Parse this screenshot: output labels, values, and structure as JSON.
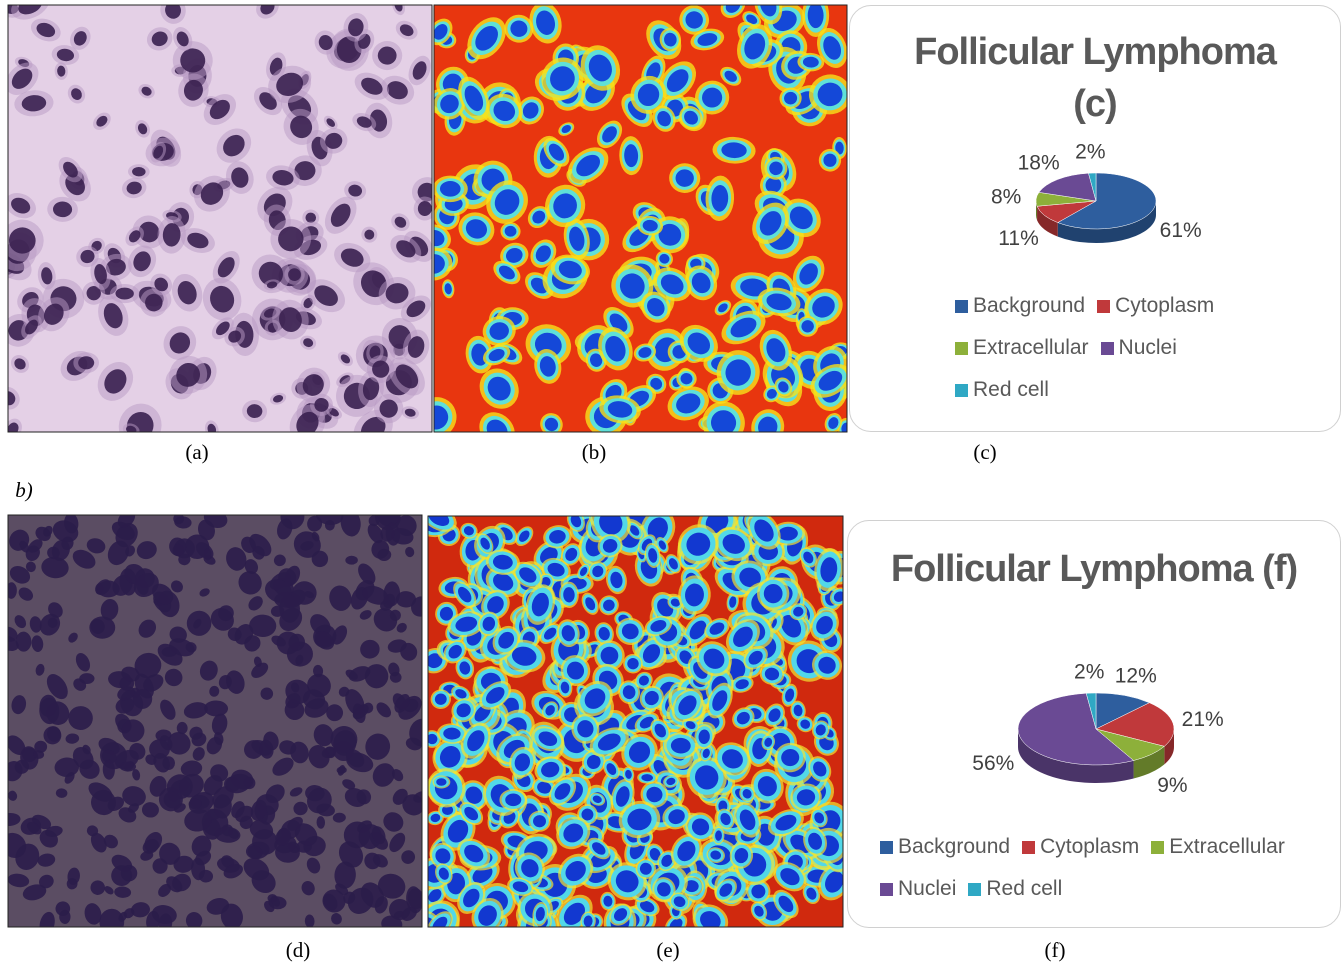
{
  "captions": [
    "(a)",
    "(b)",
    "(c)",
    "(d)",
    "(e)",
    "(f)"
  ],
  "section_label": "b)",
  "chart_data": [
    {
      "type": "pie",
      "title": "Follicular Lymphoma (c)",
      "categories": [
        "Background",
        "Cytoplasm",
        "Extracellular",
        "Nuclei",
        "Red cell"
      ],
      "values": [
        61,
        11,
        8,
        18,
        2
      ],
      "value_labels": [
        "61%",
        "11%",
        "8%",
        "18%",
        "2%"
      ],
      "colors": [
        "#2e5e9e",
        "#c0393b",
        "#8db03a",
        "#6a4a94",
        "#2fa8c4"
      ]
    },
    {
      "type": "pie",
      "title": "Follicular Lymphoma (f)",
      "categories": [
        "Background",
        "Cytoplasm",
        "Extracellular",
        "Nuclei",
        "Red cell"
      ],
      "values": [
        12,
        21,
        9,
        56,
        2
      ],
      "value_labels": [
        "12%",
        "21%",
        "9%",
        "56%",
        "2%"
      ],
      "colors": [
        "#2e5e9e",
        "#c0393b",
        "#8db03a",
        "#6a4a94",
        "#2fa8c4"
      ]
    }
  ]
}
